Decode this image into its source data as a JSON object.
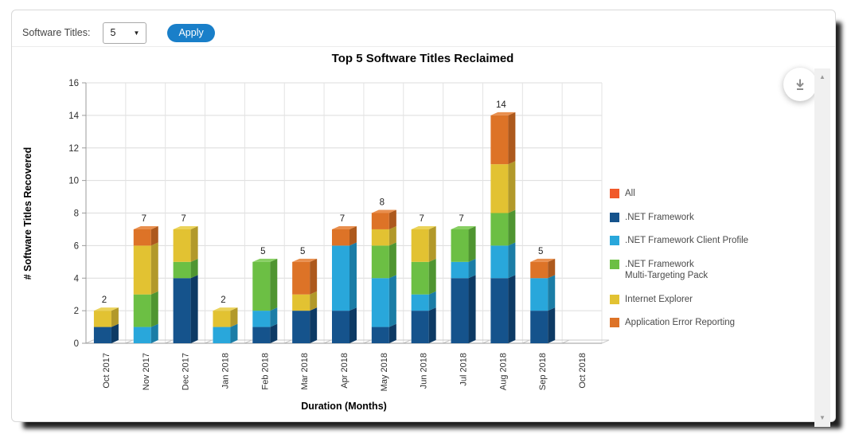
{
  "header": {
    "label": "Software Titles:",
    "dropdown_value": "5",
    "apply_label": "Apply",
    "apply_color": "#197fc9"
  },
  "chart_data": {
    "type": "bar",
    "stacked": true,
    "effect": "3d",
    "title": "Top 5 Software Titles Reclaimed",
    "xlabel": "Duration (Months)",
    "ylabel": "# Software Titles Recovered",
    "ylim": [
      0,
      16
    ],
    "ytick_step": 2,
    "grid": true,
    "legend_position": "right",
    "categories": [
      "Oct 2017",
      "Nov 2017",
      "Dec 2017",
      "Jan 2018",
      "Feb 2018",
      "Mar 2018",
      "Apr 2018",
      "May 2018",
      "Jun 2018",
      "Jul 2018",
      "Aug 2018",
      "Sep 2018",
      "Oct 2018"
    ],
    "series": [
      {
        "name": ".NET Framework",
        "color": "#15538c",
        "side": "#0d3a64",
        "top": "#31699f",
        "values": [
          1,
          0,
          4,
          0,
          1,
          2,
          2,
          1,
          2,
          4,
          4,
          2,
          0
        ]
      },
      {
        "name": ".NET Framework Client Profile",
        "color": "#29a7db",
        "side": "#1b7da6",
        "top": "#55bce4",
        "values": [
          0,
          1,
          0,
          1,
          1,
          0,
          4,
          3,
          1,
          1,
          2,
          2,
          0
        ]
      },
      {
        "name": ".NET Framework Multi-Targeting Pack",
        "color": "#6cbf44",
        "side": "#4f9531",
        "top": "#88cf63",
        "values": [
          0,
          2,
          1,
          0,
          3,
          0,
          0,
          2,
          2,
          2,
          2,
          0,
          0
        ]
      },
      {
        "name": "Internet Explorer",
        "color": "#e2c232",
        "side": "#b2992a",
        "top": "#ebd35a",
        "values": [
          1,
          3,
          2,
          1,
          0,
          1,
          0,
          1,
          2,
          0,
          3,
          0,
          0
        ]
      },
      {
        "name": "Application Error Reporting",
        "color": "#dd7327",
        "side": "#ad591d",
        "top": "#e98f4e",
        "values": [
          0,
          1,
          0,
          0,
          0,
          2,
          1,
          1,
          0,
          0,
          3,
          1,
          0
        ]
      }
    ],
    "totals": [
      2,
      7,
      7,
      2,
      5,
      5,
      7,
      8,
      7,
      7,
      14,
      5,
      0
    ],
    "legend": [
      {
        "label": "All",
        "color": "#f1592a"
      },
      {
        "label": ".NET Framework",
        "color": "#15538c"
      },
      {
        "label": ".NET Framework Client Profile",
        "color": "#29a7db"
      },
      {
        "label": ".NET Framework\nMulti-Targeting Pack",
        "color": "#6cbf44"
      },
      {
        "label": "Internet Explorer",
        "color": "#e2c232"
      },
      {
        "label": "Application Error Reporting",
        "color": "#dd7327"
      }
    ]
  }
}
